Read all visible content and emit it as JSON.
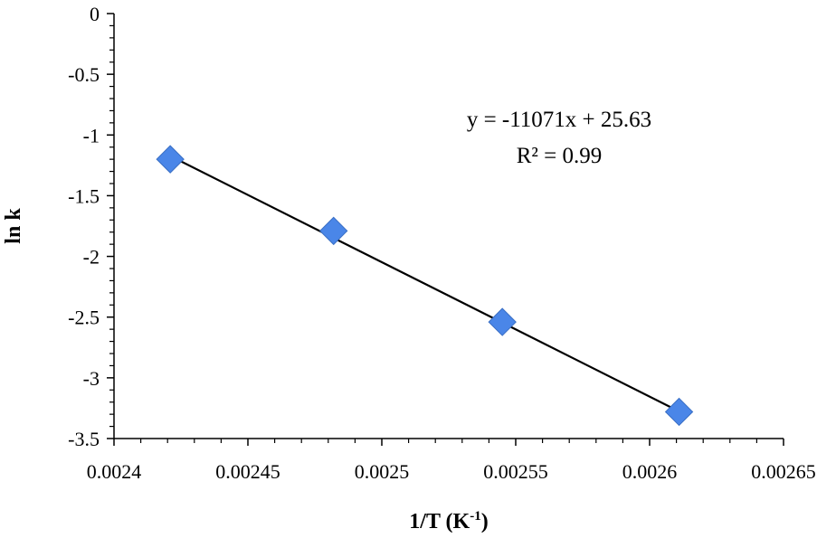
{
  "chart_data": {
    "type": "scatter",
    "title": "",
    "xlabel": "1/T (K",
    "xlabel_sup": "-1",
    "xlabel_close": ")",
    "ylabel": "ln k",
    "xlim": [
      0.0024,
      0.00265
    ],
    "ylim": [
      -3.5,
      0
    ],
    "x_ticks": [
      0.0024,
      0.00245,
      0.0025,
      0.00255,
      0.0026,
      0.00265
    ],
    "x_tick_labels": [
      "0.0024",
      "0.00245",
      "0.0025",
      "0.00255",
      "0.0026",
      "0.00265"
    ],
    "y_ticks": [
      0,
      -0.5,
      -1,
      -1.5,
      -2,
      -2.5,
      -3,
      -3.5
    ],
    "y_tick_labels": [
      "0",
      "-0.5",
      "-1",
      "-1.5",
      "-2",
      "-2.5",
      "-3",
      "-3.5"
    ],
    "grid": false,
    "series": [
      {
        "marker": "diamond",
        "color": "#4a86e8",
        "x": [
          0.002421,
          0.002482,
          0.002545,
          0.002611
        ],
        "y": [
          -1.2,
          -1.79,
          -2.54,
          -3.28
        ]
      }
    ],
    "trendline": {
      "color": "#000000",
      "slope": -11071,
      "intercept": 25.63,
      "x_range": [
        0.002421,
        0.002611
      ]
    },
    "annotations": {
      "equation": "y = -11071x + 25.63",
      "r_squared": "R² = 0.99"
    }
  }
}
